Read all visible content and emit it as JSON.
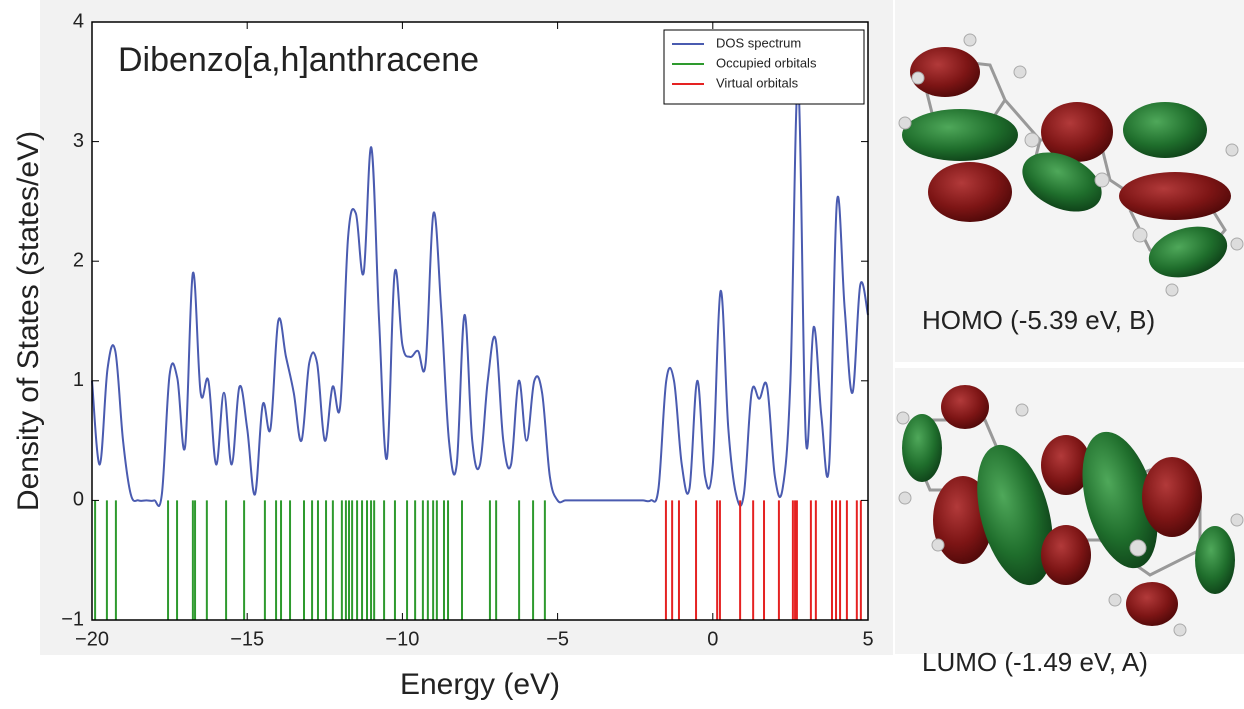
{
  "chart_data": {
    "type": "line",
    "title": "Dibenzo[a,h]anthracene",
    "xlabel": "Energy (eV)",
    "ylabel": "Density of States (states/eV)",
    "xlim": [
      -20,
      5
    ],
    "ylim": [
      -1,
      4
    ],
    "xticks": [
      {
        "value": -20,
        "label": "−20"
      },
      {
        "value": -15,
        "label": "−15"
      },
      {
        "value": -10,
        "label": "−10"
      },
      {
        "value": -5,
        "label": "−5"
      },
      0,
      5
    ],
    "yticks": [
      {
        "value": -1,
        "label": "−1"
      },
      0,
      1,
      2,
      3,
      4
    ],
    "legend": "upper right",
    "series": [
      {
        "name": "DOS spectrum",
        "color": "#4a5bb0",
        "x": [
          -20,
          -19.75,
          -19.5,
          -19.25,
          -19,
          -18.75,
          -18.5,
          -18.25,
          -18,
          -17.75,
          -17.5,
          -17.25,
          -17,
          -16.75,
          -16.5,
          -16.25,
          -16,
          -15.75,
          -15.5,
          -15.25,
          -15,
          -14.75,
          -14.5,
          -14.25,
          -14,
          -13.75,
          -13.5,
          -13.25,
          -13,
          -12.75,
          -12.5,
          -12.25,
          -12,
          -11.75,
          -11.5,
          -11.25,
          -11,
          -10.75,
          -10.5,
          -10.25,
          -10,
          -9.75,
          -9.5,
          -9.25,
          -9,
          -8.75,
          -8.5,
          -8.25,
          -8,
          -7.75,
          -7.5,
          -7.25,
          -7,
          -6.75,
          -6.5,
          -6.25,
          -6,
          -5.75,
          -5.5,
          -5.25,
          -5,
          -4.75,
          -4.5,
          -4.25,
          -4,
          -3.75,
          -3.5,
          -3.25,
          -3,
          -2.75,
          -2.5,
          -2.25,
          -2,
          -1.75,
          -1.5,
          -1.25,
          -1,
          -0.75,
          -0.5,
          -0.25,
          0,
          0.25,
          0.5,
          0.75,
          1,
          1.25,
          1.5,
          1.75,
          2,
          2.25,
          2.5,
          2.75,
          3,
          3.25,
          3.5,
          3.75,
          4,
          4.25,
          4.5,
          4.75,
          5
        ],
        "values": [
          1.0,
          0.3,
          1.1,
          1.25,
          0.5,
          0.05,
          0,
          0,
          0,
          0.05,
          1.05,
          1.02,
          0.45,
          1.9,
          0.9,
          1.0,
          0.3,
          0.9,
          0.3,
          0.95,
          0.6,
          0.05,
          0.8,
          0.6,
          1.5,
          1.2,
          0.9,
          0.5,
          1.15,
          1.15,
          0.5,
          0.95,
          0.8,
          2.2,
          2.4,
          1.9,
          2.95,
          1.5,
          0.35,
          1.9,
          1.3,
          1.2,
          1.25,
          1.15,
          2.4,
          1.6,
          0.5,
          0.3,
          1.55,
          0.5,
          0.3,
          1.0,
          1.35,
          0.5,
          0.3,
          1.0,
          0.5,
          1.0,
          0.9,
          0.2,
          0,
          0,
          0,
          0,
          0,
          0,
          0,
          0,
          0,
          0,
          0,
          0,
          0,
          0.1,
          1.0,
          1.0,
          0.3,
          0.1,
          1.0,
          0.2,
          0.3,
          1.75,
          0.6,
          0.05,
          0.05,
          0.9,
          0.85,
          0.95,
          0.2,
          0.1,
          1.0,
          3.5,
          0.5,
          1.45,
          0.7,
          0.3,
          2.5,
          1.6,
          0.9,
          1.8,
          1.55
        ]
      },
      {
        "name": "Occupied orbitals",
        "color": "#2e9a2e",
        "x": [
          -19.9,
          -19.52,
          -19.23,
          -17.55,
          -17.26,
          -16.75,
          -16.68,
          -16.3,
          -15.68,
          -15.1,
          -14.43,
          -14.07,
          -13.91,
          -13.62,
          -13.17,
          -12.91,
          -12.72,
          -12.46,
          -12.24,
          -11.95,
          -11.82,
          -11.72,
          -11.62,
          -11.46,
          -11.3,
          -11.14,
          -11.01,
          -10.91,
          -10.59,
          -10.24,
          -9.85,
          -9.59,
          -9.34,
          -9.18,
          -9.01,
          -8.89,
          -8.66,
          -8.53,
          -8.08,
          -7.18,
          -6.98,
          -6.24,
          -5.79,
          -5.41
        ]
      },
      {
        "name": "Virtual orbitals",
        "color": "#e52222",
        "x": [
          -1.51,
          -1.31,
          -1.09,
          -0.54,
          0.14,
          0.23,
          0.88,
          1.3,
          1.65,
          2.13,
          2.58,
          2.65,
          2.71,
          3.16,
          3.32,
          3.84,
          3.97,
          4.1,
          4.32,
          4.64,
          4.77
        ]
      }
    ]
  },
  "orbitals": [
    {
      "label": "HOMO (-5.39 eV, B)"
    },
    {
      "label": "LUMO (-1.49 eV, A)"
    }
  ]
}
